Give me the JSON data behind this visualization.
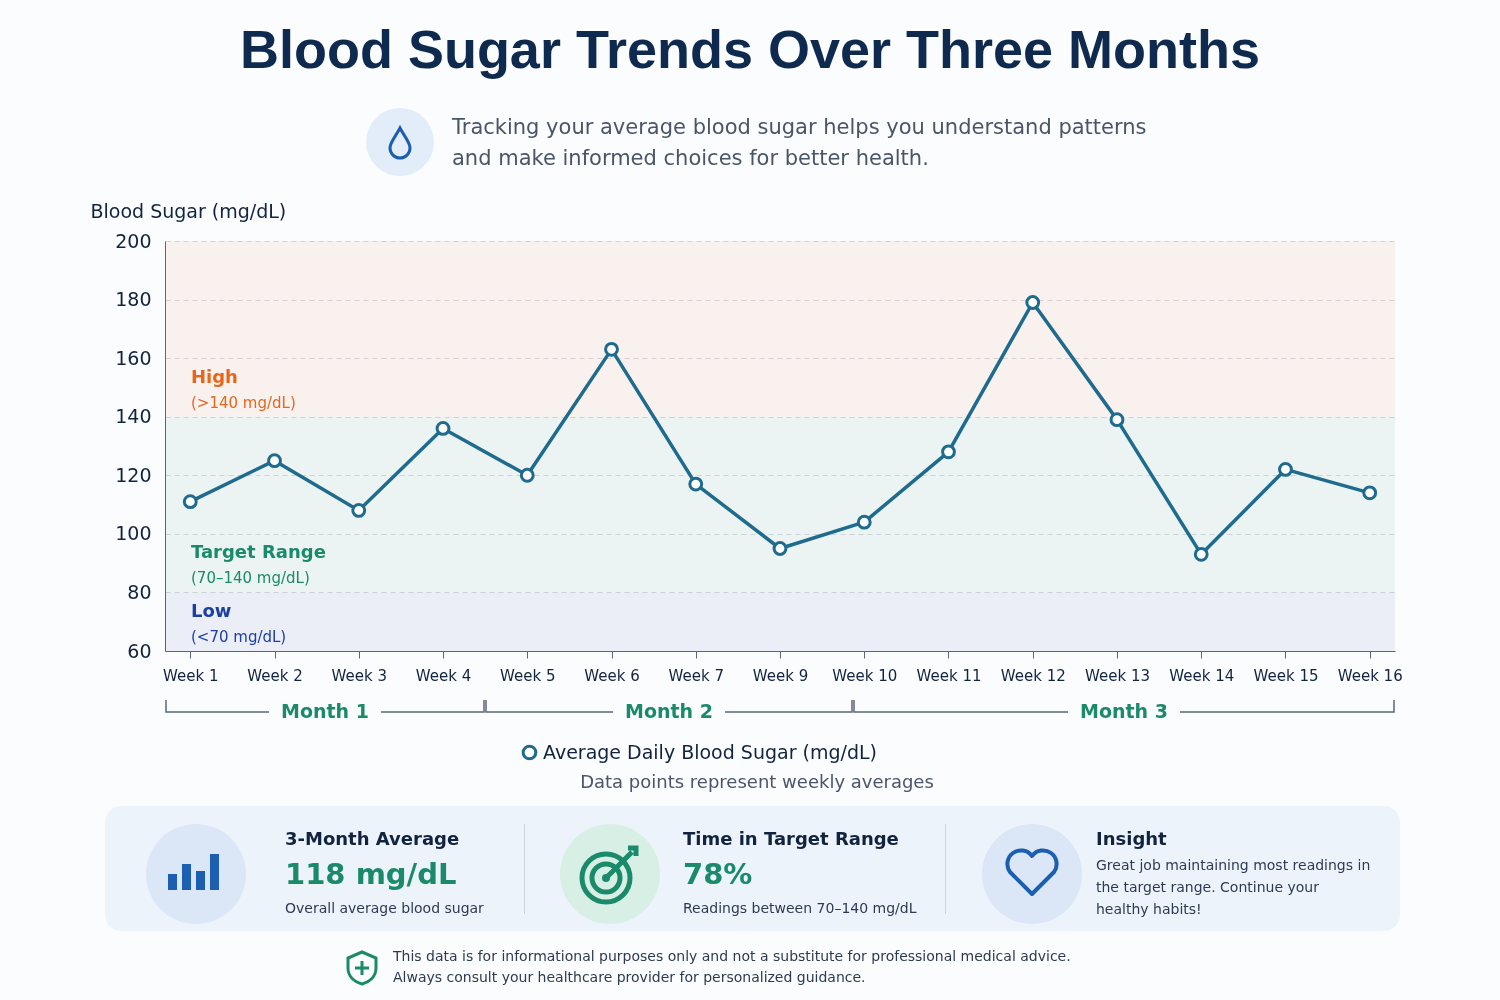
{
  "chart_data": {
    "type": "line",
    "title": "Blood Sugar Trends Over Three Months",
    "subtitle": "Tracking your average blood sugar helps you understand patterns and make informed choices for better health.",
    "ylabel": "Blood Sugar (mg/dL)",
    "categories": [
      "Week 1",
      "Week 2",
      "Week 3",
      "Week 4",
      "Week 5",
      "Week 6",
      "Week 7",
      "Week 9",
      "Week 10",
      "Week 11",
      "Week 12",
      "Week 13",
      "Week 14",
      "Week 15",
      "Week 16"
    ],
    "series": [
      {
        "name": "Average Daily Blood Sugar (mg/dL)",
        "color": "#1f6b8e",
        "values": [
          111,
          125,
          108,
          136,
          120,
          163,
          117,
          95,
          104,
          128,
          179,
          139,
          93,
          122,
          114
        ]
      }
    ],
    "ylim": [
      60,
      200
    ],
    "yticks": [
      60,
      80,
      100,
      120,
      140,
      160,
      180,
      200
    ],
    "grid": "y",
    "marker": "circle",
    "line_style": "solid",
    "legend": "bottom",
    "bands": [
      {
        "axis": "y",
        "from": 140,
        "to": 200,
        "label": "High\n(>140 mg/dL)",
        "color": "#e8661c"
      },
      {
        "axis": "y",
        "from": 80,
        "to": 140,
        "label": "Target Range\n(70–140 mg/dL)",
        "color": "#1a8a6a"
      },
      {
        "axis": "y",
        "from": 60,
        "to": 80,
        "label": "Low\n(<70 mg/dL)",
        "color": "#1d3fa0"
      }
    ],
    "annotations": [
      "Month 1",
      "Month 2",
      "Month 3",
      "Data points represent weekly averages",
      "3-Month Average",
      "118 mg/dL",
      "Overall average blood sugar",
      "Time in Target Range",
      "78%",
      "Readings between 70–140 mg/dL",
      "Insight",
      "Great job maintaining most readings in the target range. Continue your healthy habits!",
      "This data is for informational purposes only and not a substitute for professional medical advice.",
      "Always consult your healthcare provider for personalized guidance."
    ]
  }
}
